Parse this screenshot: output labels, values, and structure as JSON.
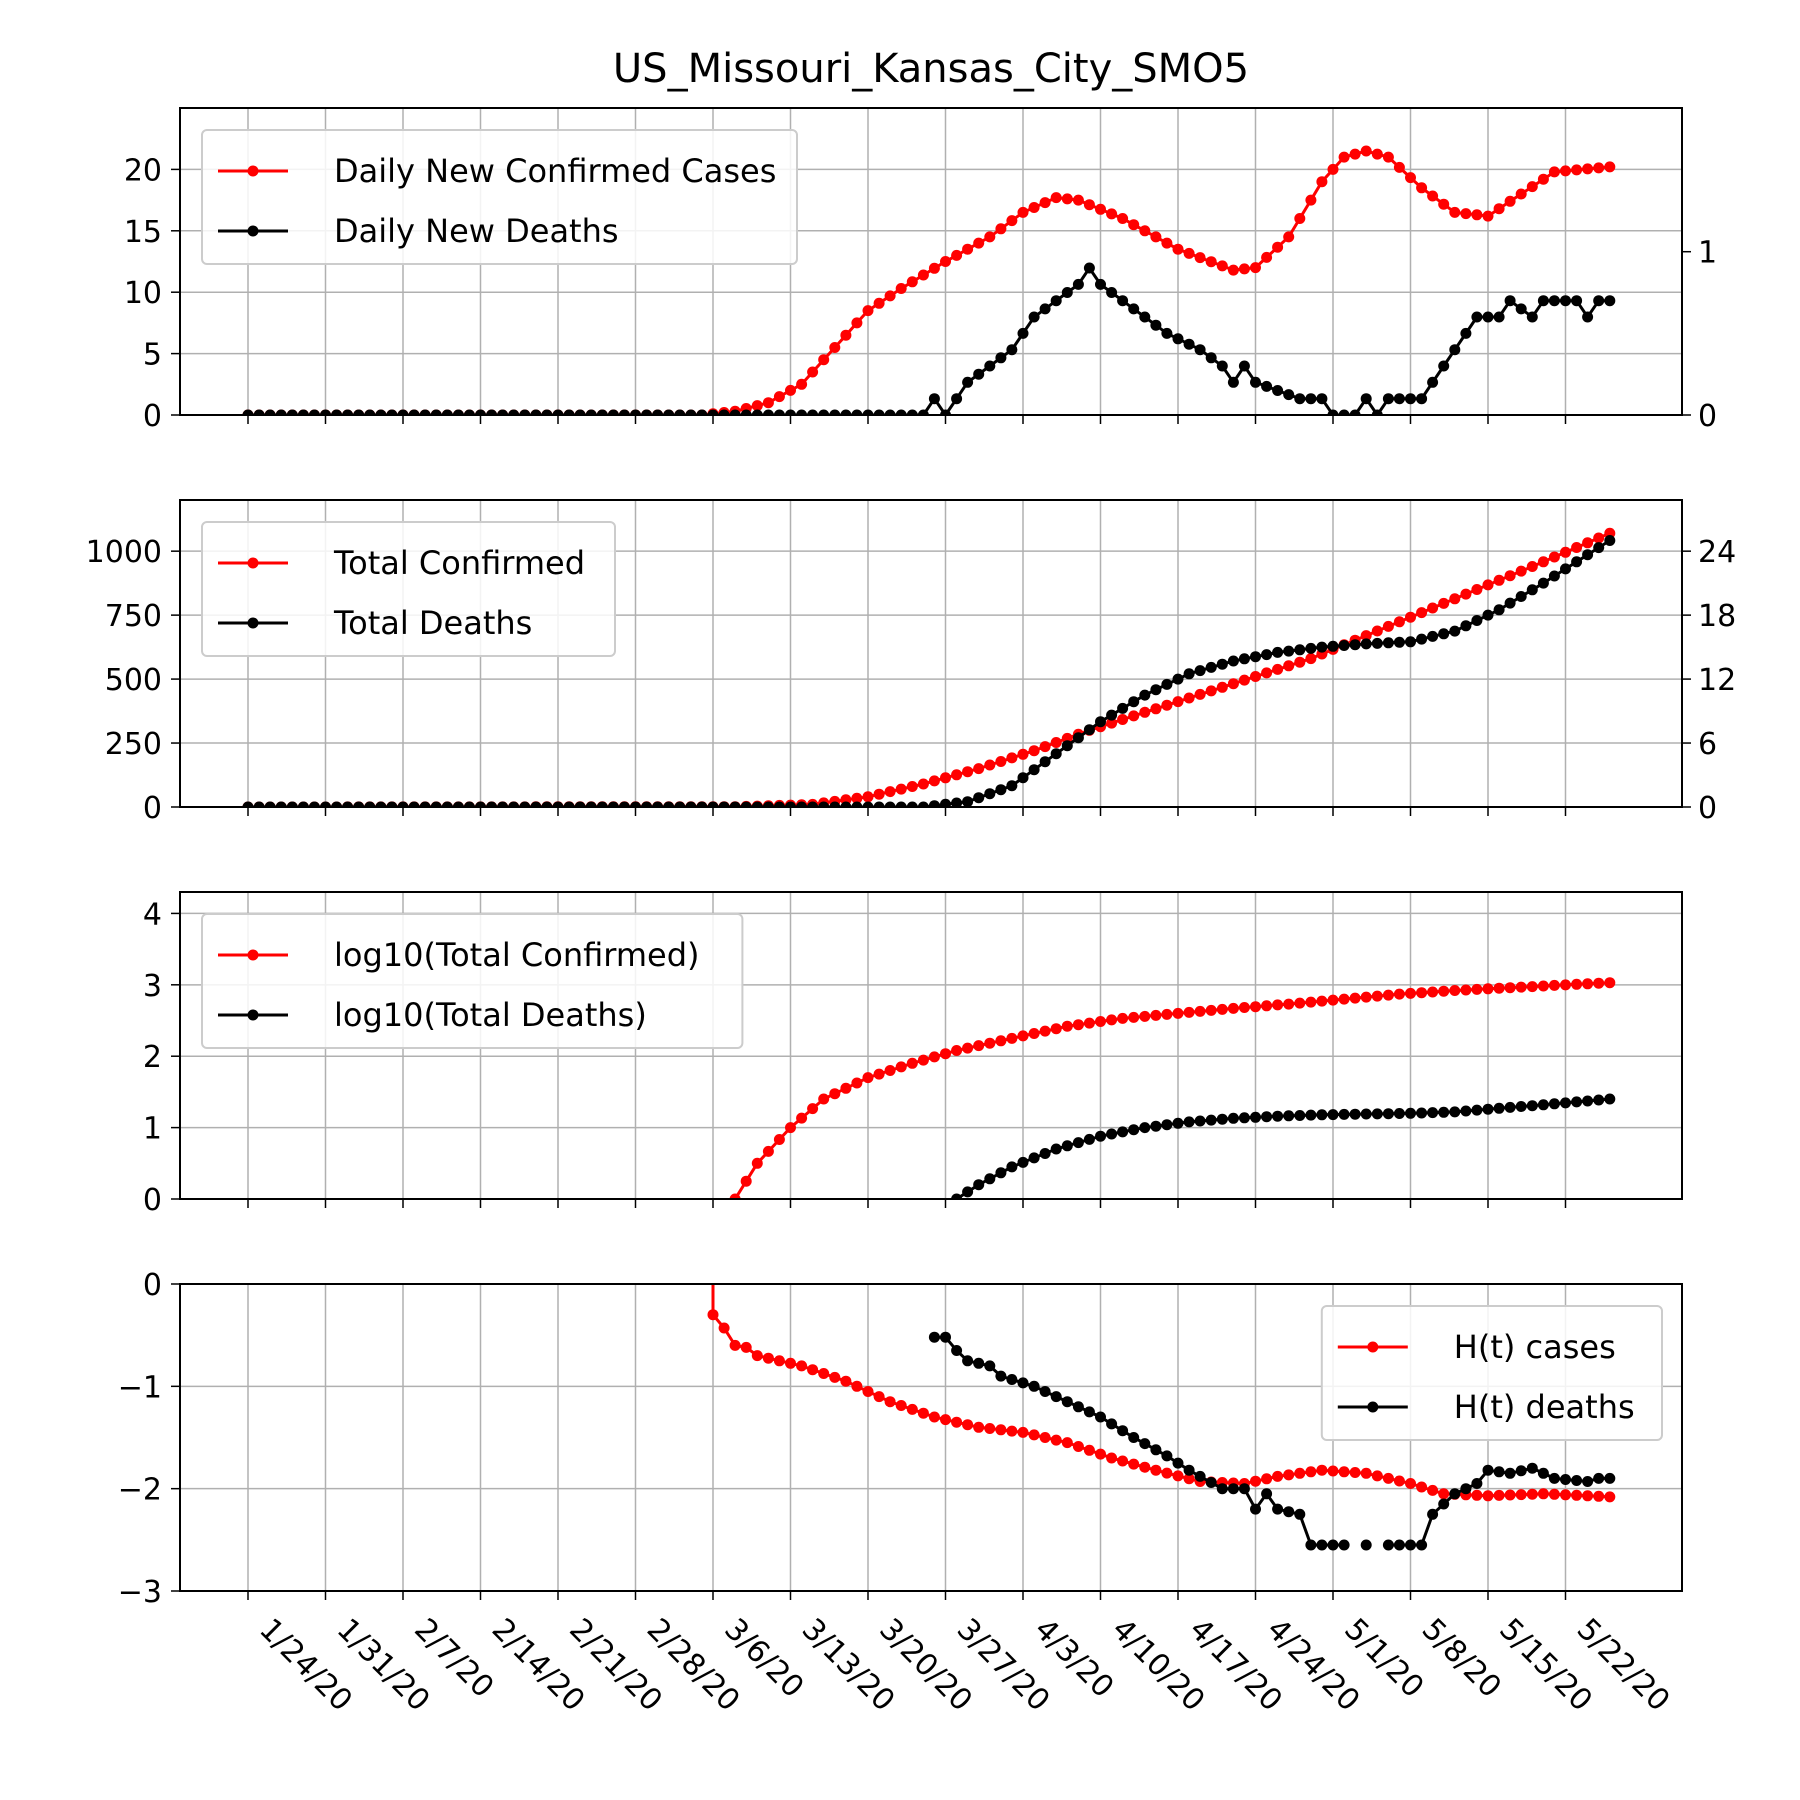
{
  "title": "US_Missouri_Kansas_City_SMO5",
  "x_tick_labels": [
    "1/24/20",
    "1/31/20",
    "2/7/20",
    "2/14/20",
    "2/21/20",
    "2/28/20",
    "3/6/20",
    "3/13/20",
    "3/20/20",
    "3/27/20",
    "4/3/20",
    "4/10/20",
    "4/17/20",
    "4/24/20",
    "5/1/20",
    "5/8/20",
    "5/15/20",
    "5/22/20"
  ],
  "colors": {
    "cases": "#ff0000",
    "deaths": "#000000"
  },
  "chart_data": [
    {
      "type": "line",
      "title": "US_Missouri_Kansas_City_SMO5",
      "x_start": "1/24/20",
      "x_end": "5/26/20",
      "left_ylim": [
        0,
        25
      ],
      "left_yticks": [
        "0",
        "5",
        "10",
        "15",
        "20"
      ],
      "right_ylim": [
        0,
        1.88
      ],
      "right_yticks": [
        "0",
        "1"
      ],
      "grid": true,
      "legend": "upper-left",
      "series": [
        {
          "name": "Daily New Confirmed Cases",
          "axis": "left",
          "color": "#ff0000",
          "keypoints": [
            [
              "1/24/20",
              0
            ],
            [
              "3/5/20",
              0
            ],
            [
              "3/8/20",
              0.3
            ],
            [
              "3/11/20",
              1
            ],
            [
              "3/14/20",
              2.5
            ],
            [
              "3/17/20",
              5.5
            ],
            [
              "3/20/20",
              8.5
            ],
            [
              "3/23/20",
              10.3
            ],
            [
              "3/27/20",
              12.5
            ],
            [
              "3/31/20",
              14.5
            ],
            [
              "4/3/20",
              16.5
            ],
            [
              "4/6/20",
              17.7
            ],
            [
              "4/8/20",
              17.5
            ],
            [
              "4/12/20",
              16
            ],
            [
              "4/17/20",
              13.5
            ],
            [
              "4/22/20",
              11.8
            ],
            [
              "4/24/20",
              12
            ],
            [
              "4/27/20",
              14.5
            ],
            [
              "4/30/20",
              19
            ],
            [
              "5/2/20",
              21
            ],
            [
              "5/4/20",
              21.5
            ],
            [
              "5/6/20",
              21
            ],
            [
              "5/9/20",
              18.5
            ],
            [
              "5/12/20",
              16.5
            ],
            [
              "5/15/20",
              16.2
            ],
            [
              "5/18/20",
              18
            ],
            [
              "5/21/20",
              19.8
            ],
            [
              "5/26/20",
              20.2
            ]
          ]
        },
        {
          "name": "Daily New Deaths",
          "axis": "right",
          "color": "#000000",
          "keypoints": [
            [
              "1/24/20",
              0
            ],
            [
              "3/25/20",
              0
            ],
            [
              "3/26/20",
              0.1
            ],
            [
              "3/27/20",
              0
            ],
            [
              "3/28/20",
              0.1
            ],
            [
              "3/29/20",
              0.2
            ],
            [
              "3/31/20",
              0.3
            ],
            [
              "4/2/20",
              0.4
            ],
            [
              "4/4/20",
              0.6
            ],
            [
              "4/6/20",
              0.7
            ],
            [
              "4/8/20",
              0.8
            ],
            [
              "4/9/20",
              0.9
            ],
            [
              "4/10/20",
              0.8
            ],
            [
              "4/12/20",
              0.7
            ],
            [
              "4/14/20",
              0.6
            ],
            [
              "4/16/20",
              0.5
            ],
            [
              "4/19/20",
              0.4
            ],
            [
              "4/21/20",
              0.3
            ],
            [
              "4/22/20",
              0.2
            ],
            [
              "4/23/20",
              0.3
            ],
            [
              "4/24/20",
              0.2
            ],
            [
              "4/28/20",
              0.1
            ],
            [
              "4/30/20",
              0.1
            ],
            [
              "5/1/20",
              0
            ],
            [
              "5/3/20",
              0
            ],
            [
              "5/4/20",
              0.1
            ],
            [
              "5/5/20",
              0
            ],
            [
              "5/6/20",
              0.1
            ],
            [
              "5/9/20",
              0.1
            ],
            [
              "5/10/20",
              0.2
            ],
            [
              "5/12/20",
              0.4
            ],
            [
              "5/14/20",
              0.6
            ],
            [
              "5/16/20",
              0.6
            ],
            [
              "5/17/20",
              0.7
            ],
            [
              "5/19/20",
              0.6
            ],
            [
              "5/20/20",
              0.7
            ],
            [
              "5/23/20",
              0.7
            ],
            [
              "5/24/20",
              0.6
            ],
            [
              "5/25/20",
              0.7
            ],
            [
              "5/26/20",
              0.7
            ]
          ]
        }
      ]
    },
    {
      "type": "line",
      "left_ylim": [
        0,
        1200
      ],
      "left_yticks": [
        "0",
        "250",
        "500",
        "750",
        "1000"
      ],
      "right_ylim": [
        0,
        28.8
      ],
      "right_yticks": [
        "0",
        "6",
        "12",
        "18",
        "24"
      ],
      "grid": true,
      "legend": "upper-left",
      "series": [
        {
          "name": "Total Confirmed",
          "axis": "left",
          "color": "#ff0000",
          "keypoints": [
            [
              "1/24/20",
              0
            ],
            [
              "3/8/20",
              1
            ],
            [
              "3/15/20",
              10
            ],
            [
              "3/20/20",
              40
            ],
            [
              "3/25/20",
              90
            ],
            [
              "3/30/20",
              150
            ],
            [
              "4/4/20",
              220
            ],
            [
              "4/9/20",
              300
            ],
            [
              "4/14/20",
              370
            ],
            [
              "4/19/20",
              440
            ],
            [
              "4/24/20",
              510
            ],
            [
              "4/29/20",
              580
            ],
            [
              "5/4/20",
              670
            ],
            [
              "5/9/20",
              760
            ],
            [
              "5/14/20",
              850
            ],
            [
              "5/19/20",
              940
            ],
            [
              "5/26/20",
              1070
            ]
          ]
        },
        {
          "name": "Total Deaths",
          "axis": "right",
          "color": "#000000",
          "keypoints": [
            [
              "1/24/20",
              0
            ],
            [
              "3/25/20",
              0
            ],
            [
              "3/29/20",
              0.5
            ],
            [
              "4/2/20",
              2
            ],
            [
              "4/6/20",
              5
            ],
            [
              "4/10/20",
              8
            ],
            [
              "4/14/20",
              10.5
            ],
            [
              "4/18/20",
              12.5
            ],
            [
              "4/22/20",
              13.7
            ],
            [
              "4/26/20",
              14.5
            ],
            [
              "4/30/20",
              15
            ],
            [
              "5/4/20",
              15.3
            ],
            [
              "5/8/20",
              15.5
            ],
            [
              "5/12/20",
              16.5
            ],
            [
              "5/16/20",
              18.5
            ],
            [
              "5/20/20",
              21
            ],
            [
              "5/26/20",
              25
            ]
          ]
        }
      ]
    },
    {
      "type": "line",
      "left_ylim": [
        0,
        4.3
      ],
      "left_yticks": [
        "0",
        "1",
        "2",
        "3",
        "4"
      ],
      "grid": true,
      "legend": "upper-left",
      "series": [
        {
          "name": "log10(Total Confirmed)",
          "axis": "left",
          "color": "#ff0000",
          "keypoints": [
            [
              "3/8/20",
              0
            ],
            [
              "3/10/20",
              0.5
            ],
            [
              "3/13/20",
              1.0
            ],
            [
              "3/16/20",
              1.4
            ],
            [
              "3/20/20",
              1.7
            ],
            [
              "3/24/20",
              1.9
            ],
            [
              "3/28/20",
              2.08
            ],
            [
              "4/2/20",
              2.25
            ],
            [
              "4/7/20",
              2.42
            ],
            [
              "4/12/20",
              2.53
            ],
            [
              "4/17/20",
              2.6
            ],
            [
              "4/22/20",
              2.67
            ],
            [
              "4/27/20",
              2.73
            ],
            [
              "5/2/20",
              2.8
            ],
            [
              "5/7/20",
              2.87
            ],
            [
              "5/12/20",
              2.92
            ],
            [
              "5/17/20",
              2.96
            ],
            [
              "5/26/20",
              3.03
            ]
          ]
        },
        {
          "name": "log10(Total Deaths)",
          "axis": "left",
          "color": "#000000",
          "keypoints": [
            [
              "3/28/20",
              0
            ],
            [
              "3/30/20",
              0.2
            ],
            [
              "4/2/20",
              0.45
            ],
            [
              "4/6/20",
              0.7
            ],
            [
              "4/10/20",
              0.88
            ],
            [
              "4/14/20",
              1.0
            ],
            [
              "4/18/20",
              1.08
            ],
            [
              "4/22/20",
              1.13
            ],
            [
              "4/26/20",
              1.16
            ],
            [
              "4/30/20",
              1.18
            ],
            [
              "5/4/20",
              1.19
            ],
            [
              "5/8/20",
              1.2
            ],
            [
              "5/12/20",
              1.22
            ],
            [
              "5/16/20",
              1.27
            ],
            [
              "5/20/20",
              1.32
            ],
            [
              "5/26/20",
              1.4
            ]
          ]
        }
      ]
    },
    {
      "type": "line",
      "left_ylim": [
        -3,
        0
      ],
      "left_yticks": [
        "−3",
        "−2",
        "−1",
        "0"
      ],
      "grid": true,
      "legend": "upper-right",
      "series": [
        {
          "name": "H(t) cases",
          "axis": "left",
          "color": "#ff0000",
          "keypoints": [
            [
              "3/6/20",
              0.6
            ],
            [
              "3/6/20",
              -0.3
            ],
            [
              "3/7/20",
              -0.43
            ],
            [
              "3/8/20",
              -0.6
            ],
            [
              "3/9/20",
              -0.62
            ],
            [
              "3/10/20",
              -0.7
            ],
            [
              "3/14/20",
              -0.8
            ],
            [
              "3/18/20",
              -0.95
            ],
            [
              "3/22/20",
              -1.15
            ],
            [
              "3/26/20",
              -1.3
            ],
            [
              "3/30/20",
              -1.4
            ],
            [
              "4/3/20",
              -1.45
            ],
            [
              "4/7/20",
              -1.55
            ],
            [
              "4/11/20",
              -1.7
            ],
            [
              "4/15/20",
              -1.82
            ],
            [
              "4/19/20",
              -1.93
            ],
            [
              "4/23/20",
              -1.95
            ],
            [
              "4/26/20",
              -1.88
            ],
            [
              "4/30/20",
              -1.82
            ],
            [
              "5/4/20",
              -1.85
            ],
            [
              "5/8/20",
              -1.95
            ],
            [
              "5/11/20",
              -2.05
            ],
            [
              "5/15/20",
              -2.07
            ],
            [
              "5/20/20",
              -2.05
            ],
            [
              "5/26/20",
              -2.08
            ]
          ]
        },
        {
          "name": "H(t) deaths",
          "axis": "left",
          "color": "#000000",
          "keypoints": [
            [
              "3/26/20",
              -0.52
            ],
            [
              "3/27/20",
              -0.52
            ],
            [
              "3/28/20",
              -0.65
            ],
            [
              "3/29/20",
              -0.75
            ],
            [
              "3/31/20",
              -0.8
            ],
            [
              "4/1/20",
              -0.9
            ],
            [
              "4/4/20",
              -1.0
            ],
            [
              "4/7/20",
              -1.15
            ],
            [
              "4/10/20",
              -1.3
            ],
            [
              "4/13/20",
              -1.5
            ],
            [
              "4/16/20",
              -1.68
            ],
            [
              "4/18/20",
              -1.82
            ],
            [
              "4/21/20",
              -2.0
            ],
            [
              "4/23/20",
              -2.0
            ],
            [
              "4/24/20",
              -2.2
            ],
            [
              "4/25/20",
              -2.05
            ],
            [
              "4/26/20",
              -2.2
            ],
            [
              "4/28/20",
              -2.25
            ],
            [
              "4/29/20",
              -2.55
            ],
            [
              "5/2/20",
              -2.55
            ],
            [
              null,
              null
            ],
            [
              "5/4/20",
              -2.55
            ],
            [
              null,
              null
            ],
            [
              "5/6/20",
              -2.55
            ],
            [
              "5/9/20",
              -2.55
            ],
            [
              "5/10/20",
              -2.25
            ],
            [
              "5/12/20",
              -2.05
            ],
            [
              "5/14/20",
              -1.95
            ],
            [
              "5/15/20",
              -1.82
            ],
            [
              "5/17/20",
              -1.85
            ],
            [
              "5/19/20",
              -1.8
            ],
            [
              "5/21/20",
              -1.9
            ],
            [
              "5/24/20",
              -1.93
            ],
            [
              "5/25/20",
              -1.9
            ],
            [
              "5/26/20",
              -1.9
            ]
          ]
        }
      ]
    }
  ]
}
